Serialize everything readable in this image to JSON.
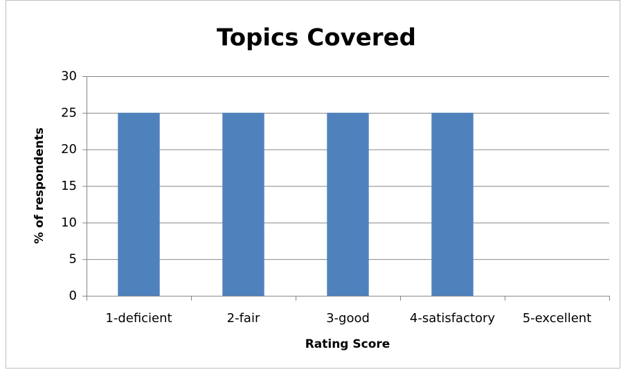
{
  "chart_data": {
    "type": "bar",
    "title": "Topics Covered",
    "x_label": "Rating Score",
    "y_label": "% of respondents",
    "categories": [
      "1-deficient",
      "2-fair",
      "3-good",
      "4-satisfactory",
      "5-excellent"
    ],
    "values": [
      25,
      25,
      25,
      25,
      0
    ],
    "color": "#4f81bd",
    "ylim": [
      0,
      30
    ],
    "yticks": [
      0,
      5,
      10,
      15,
      20,
      25,
      30
    ],
    "grid": true
  }
}
